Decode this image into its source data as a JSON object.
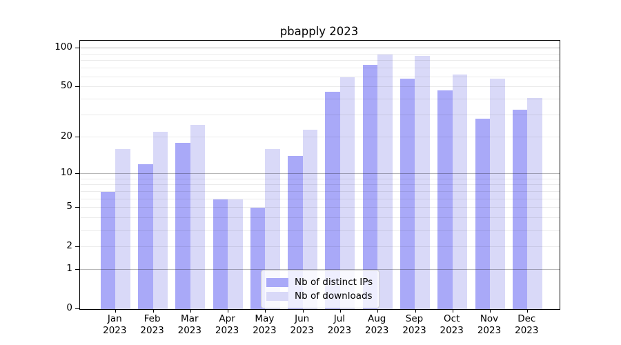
{
  "chart_data": {
    "type": "bar",
    "title": "pbapply 2023",
    "categories": [
      "Jan",
      "Feb",
      "Mar",
      "Apr",
      "May",
      "Jun",
      "Jul",
      "Aug",
      "Sep",
      "Oct",
      "Nov",
      "Dec"
    ],
    "year": "2023",
    "series": [
      {
        "key": "distinct-ips",
        "name": "Nb of distinct IPs",
        "color": "#a9a9f8",
        "values": [
          7,
          12,
          18,
          6,
          5,
          14,
          46,
          75,
          58,
          47,
          28,
          33
        ]
      },
      {
        "key": "downloads",
        "name": "Nb of downloads",
        "color": "#d9d9f8",
        "values": [
          16,
          22,
          25,
          6,
          16,
          23,
          60,
          90,
          88,
          63,
          58,
          41
        ]
      }
    ],
    "yscale": "log1p",
    "ylim": [
      0,
      115
    ],
    "yticks": [
      0,
      1,
      2,
      5,
      10,
      20,
      50,
      100
    ],
    "gridlines": {
      "major": [
        1,
        10,
        100
      ],
      "minor": [
        2,
        3,
        4,
        5,
        6,
        7,
        8,
        9,
        20,
        30,
        40,
        50,
        60,
        70,
        80,
        90
      ]
    },
    "grid": "on",
    "legend_position": "bottom-center",
    "xlabel": "",
    "ylabel": ""
  }
}
